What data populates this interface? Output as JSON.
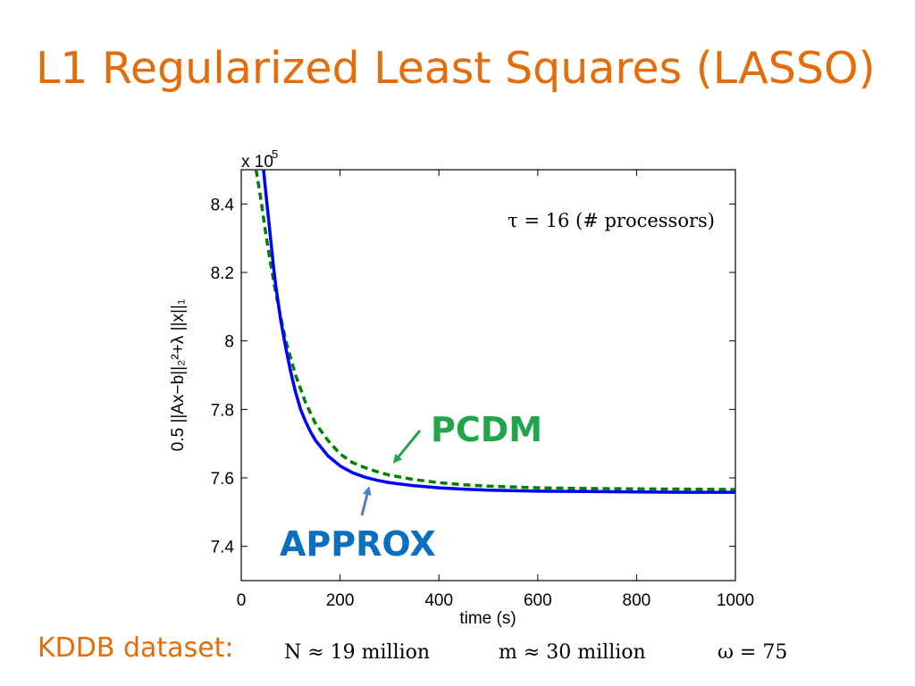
{
  "slide": {
    "title": "L1 Regularized Least Squares (LASSO)",
    "footer_label": "KDDB dataset:",
    "footer_n": "N ≈ 19 million",
    "footer_m": "m ≈ 30 million",
    "footer_omega": "ω = 75",
    "title_color": "#E46C0A"
  },
  "chart_data": {
    "type": "line",
    "xlabel": "time (s)",
    "ylabel": "0.5 ||Ax−b||₂²+λ ||x||₁",
    "y_multiplier": "x 10",
    "y_multiplier_exp": "5",
    "xlim": [
      0,
      1000
    ],
    "ylim": [
      7.3,
      8.5
    ],
    "xticks": [
      0,
      200,
      400,
      600,
      800,
      1000
    ],
    "yticks": [
      7.4,
      7.6,
      7.8,
      8,
      8.2,
      8.4
    ],
    "xtick_labels": [
      "0",
      "200",
      "400",
      "600",
      "800",
      "1000"
    ],
    "ytick_labels": [
      "7.4",
      "7.6",
      "7.8",
      "8",
      "8.2",
      "8.4"
    ],
    "grid": false,
    "annotation": "τ = 16 (# processors)",
    "series": [
      {
        "name": "PCDM",
        "color": "#008000",
        "style": "dashed",
        "x": [
          30,
          40,
          50,
          60,
          70,
          80,
          90,
          100,
          110,
          120,
          130,
          140,
          150,
          175,
          200,
          225,
          250,
          275,
          300,
          350,
          400,
          450,
          500,
          600,
          700,
          800,
          900,
          1000
        ],
        "y": [
          8.5,
          8.41,
          8.31,
          8.22,
          8.14,
          8.07,
          8.0,
          7.95,
          7.9,
          7.86,
          7.82,
          7.79,
          7.76,
          7.71,
          7.67,
          7.645,
          7.63,
          7.618,
          7.608,
          7.595,
          7.586,
          7.58,
          7.576,
          7.571,
          7.569,
          7.568,
          7.567,
          7.566
        ]
      },
      {
        "name": "APPROX",
        "color": "#0000FF",
        "style": "solid",
        "x": [
          45,
          50,
          55,
          60,
          65,
          70,
          80,
          90,
          100,
          110,
          120,
          130,
          140,
          150,
          175,
          200,
          225,
          250,
          275,
          300,
          350,
          400,
          450,
          500,
          600,
          700,
          800,
          900,
          1000
        ],
        "y": [
          8.5,
          8.43,
          8.36,
          8.29,
          8.22,
          8.16,
          8.06,
          7.98,
          7.91,
          7.85,
          7.8,
          7.765,
          7.735,
          7.71,
          7.665,
          7.635,
          7.615,
          7.602,
          7.593,
          7.586,
          7.577,
          7.571,
          7.567,
          7.564,
          7.561,
          7.56,
          7.559,
          7.558,
          7.558
        ]
      }
    ],
    "callouts": [
      {
        "label": "PCDM",
        "color": "#21A54B"
      },
      {
        "label": "APPROX",
        "color": "#0A6FBF"
      }
    ]
  }
}
